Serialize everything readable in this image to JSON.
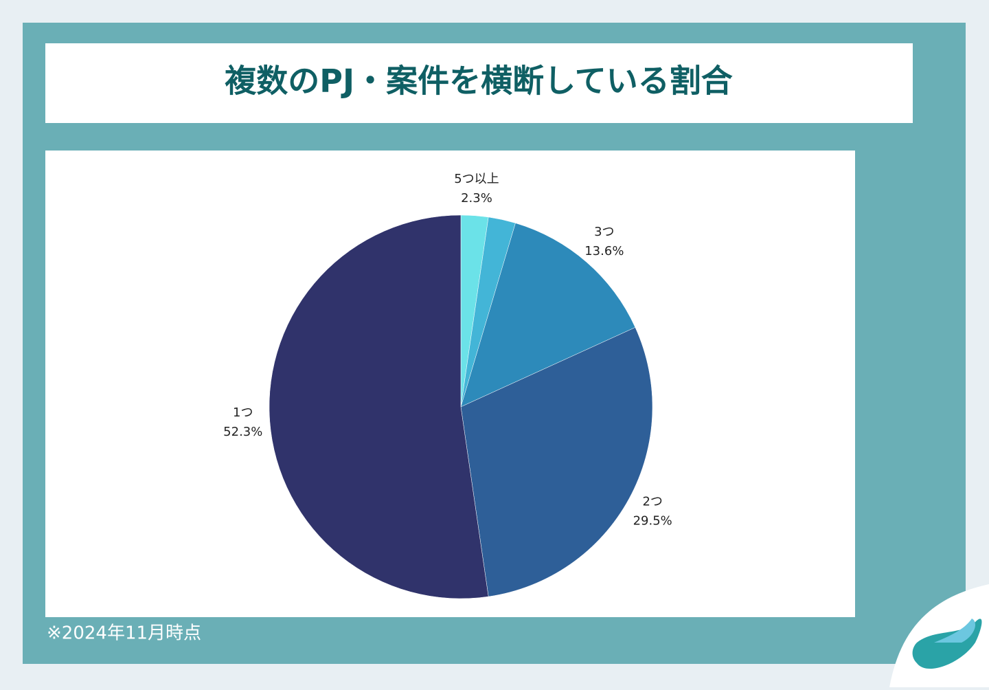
{
  "chart_data": {
    "type": "pie",
    "title": "複数のPJ・案件を横断している割合",
    "categories": [
      "5つ以上",
      null,
      "3つ",
      "2つ",
      "1つ"
    ],
    "values": [
      2.3,
      2.3,
      13.6,
      29.5,
      52.3
    ],
    "value_labels": [
      "2.3%",
      null,
      "13.6%",
      "29.5%",
      "52.3%"
    ],
    "colors": [
      "#6be2e8",
      "#43b5d7",
      "#2d8aba",
      "#2e5f98",
      "#30336b"
    ],
    "note": "※2024年11月時点"
  }
}
